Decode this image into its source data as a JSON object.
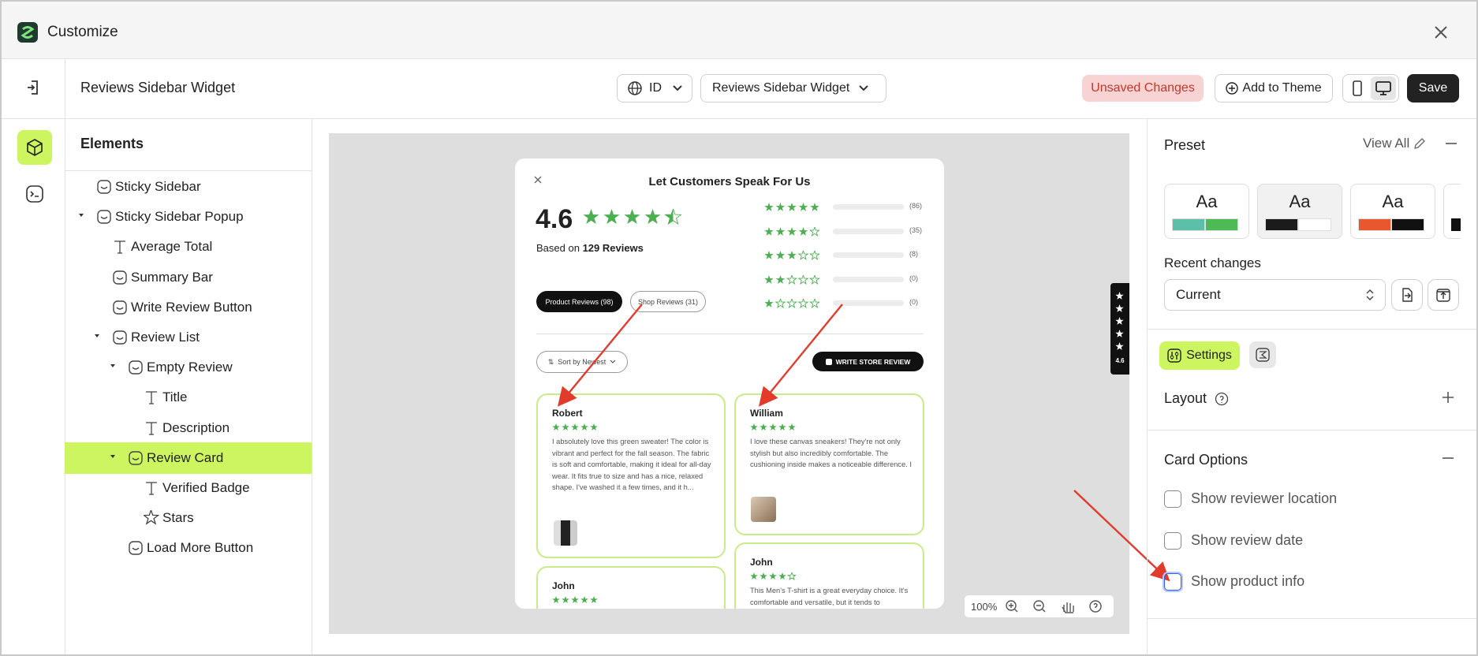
{
  "window": {
    "title": "Customize"
  },
  "toolbar": {
    "page_title": "Reviews Sidebar Widget",
    "language": "ID",
    "template": "Reviews Sidebar Widget",
    "status": "Unsaved Changes",
    "add_to_theme": "Add to Theme",
    "save": "Save"
  },
  "elements_panel": {
    "title": "Elements",
    "items": [
      "Sticky Sidebar",
      "Sticky Sidebar Popup",
      "Average Total",
      "Summary Bar",
      "Write Review Button",
      "Review List",
      "Empty Review",
      "Title",
      "Description",
      "Review Card",
      "Verified Badge",
      "Stars",
      "Load More Button"
    ]
  },
  "preview": {
    "title": "Let Customers Speak For Us",
    "rating": "4.6",
    "based_on": "Based on",
    "review_count": "129 Reviews",
    "rating_rows": [
      {
        "stars": 5,
        "count": "(86)"
      },
      {
        "stars": 4,
        "count": "(35)"
      },
      {
        "stars": 3,
        "count": "(8)"
      },
      {
        "stars": 2,
        "count": "(0)"
      },
      {
        "stars": 1,
        "count": "(0)"
      }
    ],
    "tabs": [
      "Product Reviews (98)",
      "Shop Reviews (31)"
    ],
    "sort": "Sort by Newest",
    "write_review": "WRITE STORE REVIEW",
    "reviews": [
      {
        "name": "Robert",
        "stars": 5,
        "text": "I absolutely love this green sweater! The color is vibrant and perfect for the fall season. The fabric is soft and comfortable, making it ideal for all-day wear. It fits true to size and has a nice, relaxed shape. I've washed it a few times, and it h..."
      },
      {
        "name": "William",
        "stars": 5,
        "text": "I love these canvas sneakers! They're not only stylish but also incredibly comfortable. The cushioning inside makes a noticeable difference. I get compliments on them all the time."
      },
      {
        "name": "John",
        "stars": 5,
        "text": ""
      },
      {
        "name": "John",
        "stars": 4,
        "text": "This Men's T-shirt is a great everyday choice. It's comfortable and versatile, but it tends to"
      }
    ],
    "side_tab_rating": "4.6",
    "zoom": "100%"
  },
  "settings_panel": {
    "preset_title": "Preset",
    "view_all": "View All",
    "presets": [
      "Aa",
      "Aa",
      "Aa"
    ],
    "recent_changes": "Recent changes",
    "current": "Current",
    "settings_tab": "Settings",
    "layout": "Layout",
    "card_options": "Card Options",
    "options": [
      "Show reviewer location",
      "Show review date",
      "Show product info"
    ]
  }
}
